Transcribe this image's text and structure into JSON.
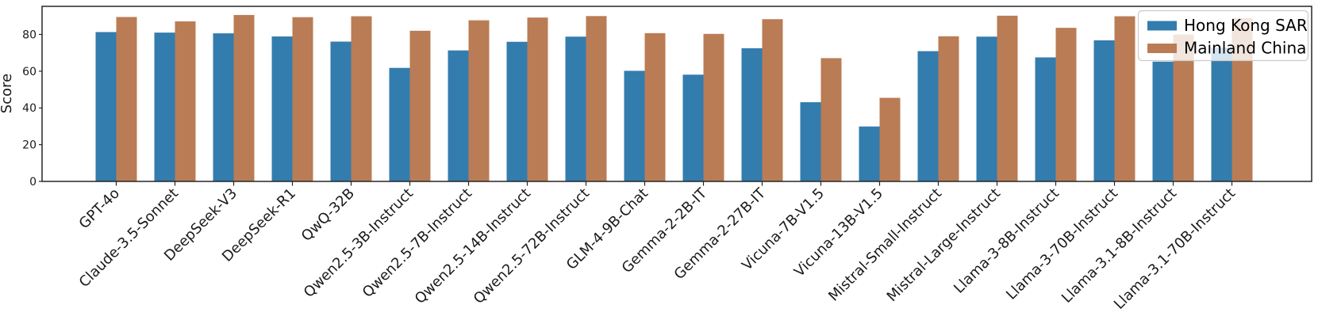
{
  "chart_data": {
    "type": "bar",
    "title": "",
    "xlabel": "",
    "ylabel": "Score",
    "ylim": [
      0,
      95.3
    ],
    "yticks": [
      0,
      20,
      40,
      60,
      80
    ],
    "grid": false,
    "legend_position": "upper right",
    "axis_color": "#262626",
    "categories": [
      "GPT-4o",
      "Claude-3.5-Sonnet",
      "DeepSeek-V3",
      "DeepSeek-R1",
      "QwQ-32B",
      "Qwen2.5-3B-Instruct",
      "Qwen2.5-7B-Instruct",
      "Qwen2.5-14B-Instruct",
      "Qwen2.5-72B-Instruct",
      "GLM-4-9B-Chat",
      "Gemma-2-2B-IT",
      "Gemma-2-27B-IT",
      "Vicuna-7B-V1.5",
      "Vicuna-13B-V1.5",
      "Mistral-Small-Instruct",
      "Mistral-Large-Instruct",
      "Llama-3-8B-Instruct",
      "Llama-3-70B-Instruct",
      "Llama-3.1-8B-Instruct",
      "Llama-3.1-70B-Instruct"
    ],
    "series": [
      {
        "name": "Hong Kong SAR",
        "color": "#337cae",
        "values": [
          81.3,
          81.0,
          80.6,
          78.9,
          76.1,
          61.8,
          71.3,
          76.0,
          78.8,
          60.2,
          58.1,
          72.5,
          43.1,
          29.9,
          70.9,
          78.8,
          67.5,
          76.8,
          65.2,
          72.8
        ]
      },
      {
        "name": "Mainland China",
        "color": "#ba7c55",
        "values": [
          89.5,
          87.1,
          90.6,
          89.4,
          89.9,
          82.0,
          87.7,
          89.2,
          90.0,
          80.7,
          80.3,
          88.3,
          67.1,
          45.5,
          79.0,
          90.2,
          83.6,
          89.9,
          80.0,
          88.9
        ]
      }
    ]
  }
}
